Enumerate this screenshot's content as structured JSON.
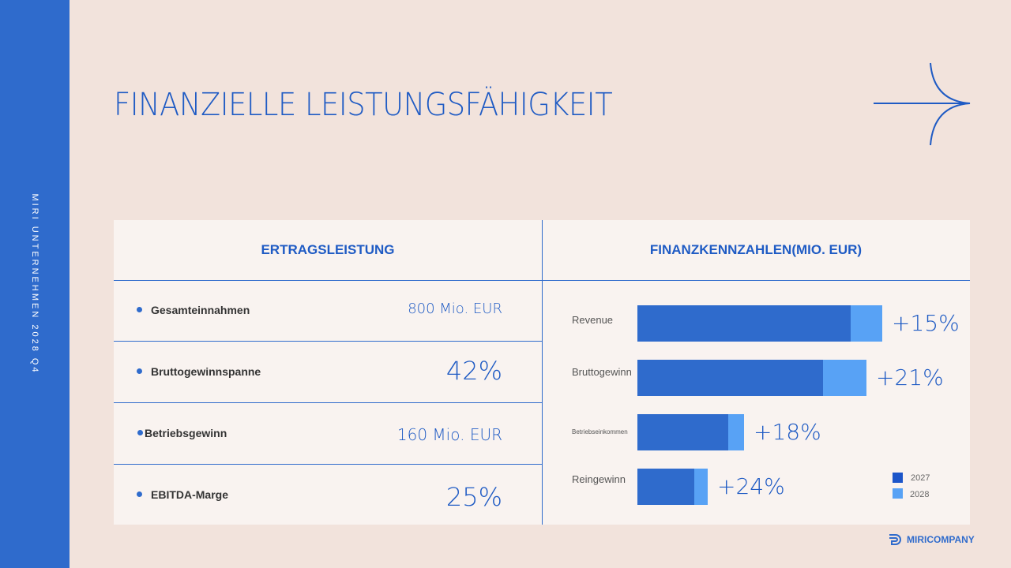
{
  "sidebar": {
    "vertical_text": "MIRI UNTERNEHMEN 2028 Q4"
  },
  "title": "FINANZIELLE LEISTUNGSFÄHIGKEIT",
  "left_panel": {
    "header": "ERTRAGSLEISTUNG",
    "rows": [
      {
        "label": "Gesamteinnahmen",
        "value": "800 Mio. EUR"
      },
      {
        "label": "Bruttogewinnspanne",
        "value": "42%"
      },
      {
        "label": "Betriebsgewinn",
        "value": "160 Mio. EUR"
      },
      {
        "label": "EBITDA-Marge",
        "value": "25%"
      }
    ]
  },
  "chart_data": {
    "type": "bar",
    "orientation": "horizontal",
    "stacked": true,
    "title": "FINANZKENNZAHLEN(MIO. EUR)",
    "categories": [
      "Revenue",
      "Bruttogewinn",
      "Betriebseinkommen",
      "Reingewinn"
    ],
    "series": [
      {
        "name": "2027",
        "values": [
          270,
          235,
          115,
          72
        ],
        "color": "#2f6bcc"
      },
      {
        "name": "2028",
        "values": [
          40,
          55,
          20,
          17
        ],
        "color": "#58a2f5"
      }
    ],
    "annotations": [
      "+15%",
      "+21%",
      "+18%",
      "+24%"
    ],
    "legend": "bottom-right",
    "grid": false
  },
  "legend_colors": {
    "2027": "#1c55c9",
    "2028": "#58a2f5"
  },
  "brand": {
    "name": "MIRICOMPANY",
    "icon": "miricompany-logo-icon"
  }
}
